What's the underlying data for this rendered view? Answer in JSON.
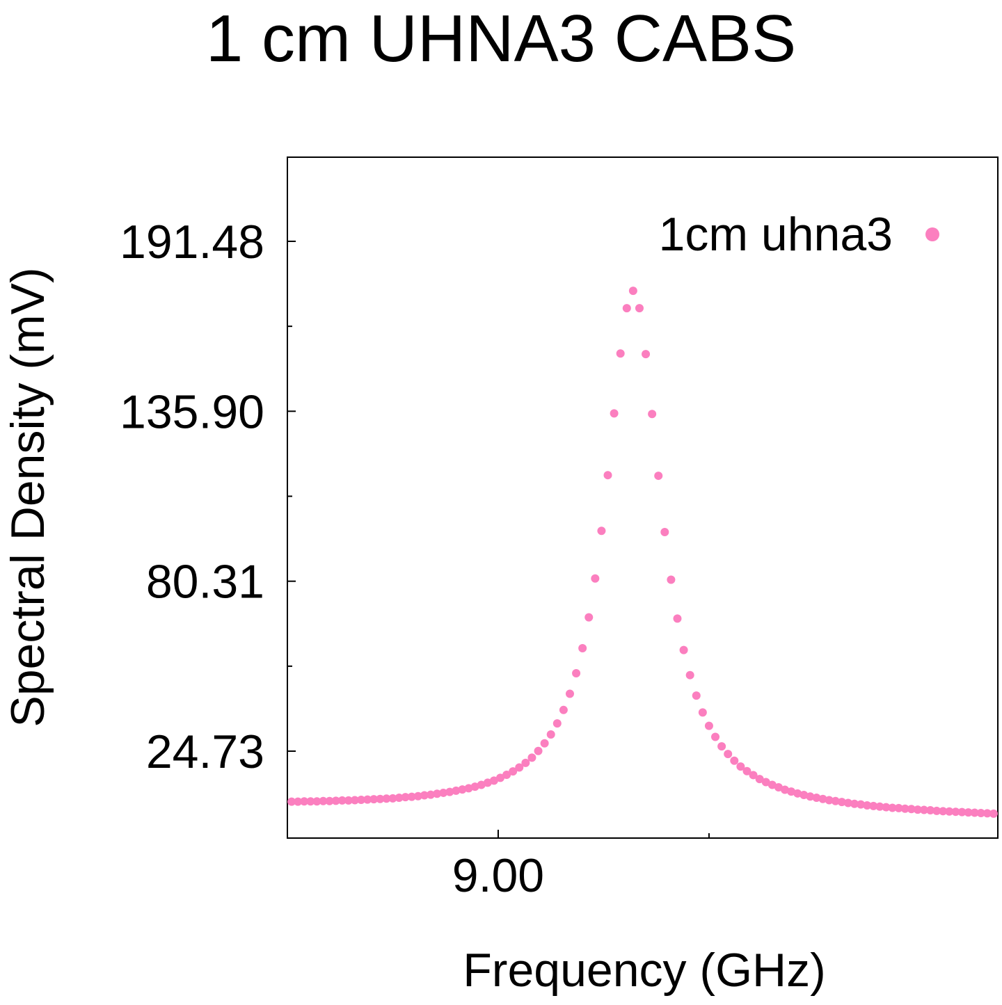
{
  "chart_data": {
    "type": "scatter",
    "title": "1 cm UHNA3 CABS",
    "xlabel": "Frequency (GHz)",
    "ylabel": "Spectral Density (mV)",
    "legend": "upper right",
    "xlim": [
      8.9,
      9.237
    ],
    "ylim": [
      -3.7,
      219.0
    ],
    "xticks": [
      {
        "value": 9,
        "label": "9.00"
      }
    ],
    "xminorticks": [
      9.1
    ],
    "yticks": [
      24.73,
      80.31,
      {
        "value": 135.9,
        "label": "135.90"
      },
      191.48
    ],
    "yminorticks": [
      52.52,
      108.1,
      163.69
    ],
    "series": [
      {
        "name": "1cm uhna3",
        "color": "#fb7fbf",
        "x": [
          8.902,
          8.905,
          8.908,
          8.911,
          8.914,
          8.917,
          8.92,
          8.923,
          8.926,
          8.929,
          8.932,
          8.935,
          8.938,
          8.941,
          8.944,
          8.947,
          8.95,
          8.953,
          8.956,
          8.959,
          8.962,
          8.965,
          8.968,
          8.971,
          8.974,
          8.977,
          8.98,
          8.983,
          8.986,
          8.989,
          8.992,
          8.995,
          8.998,
          9.001,
          9.004,
          9.007,
          9.01,
          9.013,
          9.016,
          9.019,
          9.022,
          9.025,
          9.028,
          9.031,
          9.034,
          9.037,
          9.04,
          9.043,
          9.046,
          9.049,
          9.052,
          9.055,
          9.058,
          9.061,
          9.064,
          9.067,
          9.07,
          9.073,
          9.076,
          9.079,
          9.082,
          9.085,
          9.088,
          9.091,
          9.094,
          9.097,
          9.1,
          9.103,
          9.106,
          9.109,
          9.112,
          9.115,
          9.118,
          9.121,
          9.124,
          9.127,
          9.13,
          9.133,
          9.136,
          9.139,
          9.142,
          9.145,
          9.148,
          9.151,
          9.154,
          9.157,
          9.16,
          9.163,
          9.166,
          9.169,
          9.172,
          9.175,
          9.178,
          9.181,
          9.184,
          9.187,
          9.19,
          9.193,
          9.196,
          9.199,
          9.202,
          9.205,
          9.208,
          9.211,
          9.214,
          9.217,
          9.22,
          9.223,
          9.226,
          9.229,
          9.232,
          9.235
        ],
        "values": [
          8.2,
          8.2,
          8.3,
          8.3,
          8.3,
          8.4,
          8.4,
          8.5,
          8.6,
          8.6,
          8.7,
          8.8,
          8.9,
          9.0,
          9.1,
          9.2,
          9.3,
          9.5,
          9.7,
          9.8,
          10.0,
          10.3,
          10.5,
          10.8,
          11.1,
          11.4,
          11.8,
          12.2,
          12.6,
          13.1,
          13.7,
          14.4,
          15.1,
          16.0,
          17.0,
          18.1,
          19.4,
          20.9,
          22.6,
          24.8,
          27.3,
          30.2,
          33.8,
          38.2,
          43.5,
          50.2,
          58.4,
          68.5,
          81.2,
          96.8,
          115.0,
          135.2,
          154.8,
          169.6,
          175.3,
          169.6,
          154.6,
          135.0,
          114.8,
          96.4,
          80.8,
          68.1,
          57.8,
          49.6,
          42.9,
          37.4,
          33.0,
          29.4,
          26.3,
          23.8,
          21.6,
          19.7,
          18.2,
          16.9,
          15.6,
          14.6,
          13.7,
          12.9,
          12.1,
          11.5,
          10.9,
          10.4,
          9.9,
          9.5,
          9.1,
          8.7,
          8.4,
          8.1,
          7.8,
          7.5,
          7.3,
          7.0,
          6.8,
          6.6,
          6.4,
          6.2,
          6.1,
          5.9,
          5.8,
          5.6,
          5.5,
          5.4,
          5.2,
          5.1,
          5.0,
          4.9,
          4.8,
          4.7,
          4.6,
          4.5,
          4.4,
          4.3
        ]
      }
    ]
  }
}
